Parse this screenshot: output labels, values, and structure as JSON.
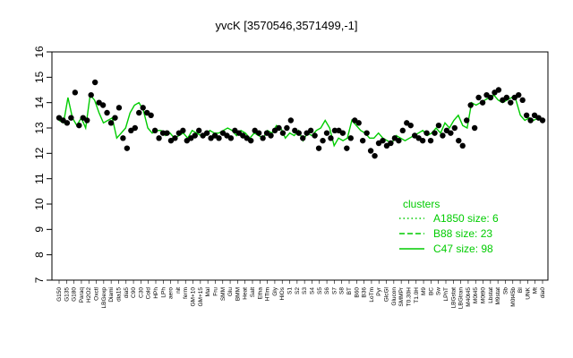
{
  "chart_data": {
    "type": "line",
    "title": "yvcK [3570546,3571499,-1]",
    "xlabel": "",
    "ylabel": "",
    "ylim": [
      7,
      16
    ],
    "yticks": [
      7,
      8,
      9,
      10,
      11,
      12,
      13,
      14,
      15,
      16
    ],
    "grid": false,
    "legend": {
      "title": "clusters",
      "placement": "right",
      "entries": [
        {
          "label": "A1850 size: 6",
          "style": "dotted",
          "color": "#00cc00"
        },
        {
          "label": "B88 size: 23",
          "style": "dashed",
          "color": "#00cc00"
        },
        {
          "label": "C47 size: 98",
          "style": "solid",
          "color": "#00cc00"
        }
      ]
    },
    "x_tick_labels": [
      "G150",
      "G135",
      "G180",
      "Paraq",
      "H2O2",
      "Oxctl",
      "LBGexp",
      "Diami",
      "dia15",
      "dia5",
      "C90",
      "C30",
      "Cold",
      "HPh",
      "LPh",
      "aero",
      "nit",
      "ferm",
      "GM+10",
      "GM+15",
      "Mal",
      "Fru",
      "SMM",
      "Glu",
      "BMM",
      "Heat",
      "Salt",
      "Etha",
      "HTim",
      "Gly",
      "HiOs",
      "S1",
      "S2",
      "S3",
      "S4",
      "S5",
      "S6",
      "S7",
      "S8",
      "BT",
      "B60",
      "B36",
      "LoTm",
      "Pyr",
      "GlcGl",
      "Glucon",
      "SMMPr",
      "T0.30H",
      "T1.0H",
      "M9",
      "BC",
      "Sw",
      "LPhT",
      "LBGstat",
      "LBGtran",
      "M40t45",
      "M0t45",
      "M0t90",
      "Lbstat",
      "M9stat",
      "Sb",
      "M0t45b",
      "BI",
      "UNK",
      "Mt",
      "dia0"
    ],
    "series": [
      {
        "name": "",
        "style": "solid",
        "color": "#00cc00",
        "values": [
          13.3,
          13.2,
          14.2,
          13.4,
          13.1,
          13.4,
          13.0,
          14.3,
          14.1,
          13.6,
          13.2,
          13.3,
          13.4,
          12.6,
          12.8,
          13.0,
          13.6,
          13.9,
          14.0,
          13.7,
          13.0,
          12.8,
          12.9,
          12.9,
          12.7,
          12.8,
          12.6,
          12.7,
          12.8,
          12.6,
          12.9,
          12.8,
          12.7,
          12.7,
          12.9,
          12.8,
          12.8,
          12.9,
          13.0,
          12.9,
          12.7,
          12.9,
          12.8,
          12.6,
          12.8,
          12.7,
          12.6,
          12.9,
          12.8,
          13.1,
          13.0,
          12.6,
          12.8,
          12.7,
          12.9,
          12.5,
          12.8,
          12.7,
          12.9,
          13.0,
          13.3,
          13.0,
          12.3,
          12.6,
          12.5,
          12.6,
          13.3,
          13.1,
          12.9,
          12.8,
          12.6,
          12.6,
          12.8,
          12.6,
          12.5,
          12.4,
          12.7,
          12.6,
          12.5,
          12.6,
          12.7,
          12.8,
          12.9,
          12.7,
          12.8,
          13.0,
          12.8,
          13.2,
          13.0,
          13.3,
          13.5,
          13.1,
          13.0,
          14.0,
          13.9,
          14.0,
          14.1,
          14.2,
          14.3,
          14.1,
          14.0,
          14.1,
          14.2,
          14.1,
          13.5,
          13.3,
          13.4,
          13.3,
          13.4,
          13.3
        ]
      },
      {
        "name": "",
        "style": "points",
        "color": "#000000",
        "values": [
          13.4,
          13.3,
          13.2,
          13.4,
          14.4,
          13.1,
          13.4,
          13.3,
          14.3,
          14.8,
          14.0,
          13.9,
          13.6,
          13.2,
          13.4,
          13.8,
          12.6,
          12.2,
          12.9,
          13.0,
          13.6,
          13.8,
          13.6,
          13.5,
          12.9,
          12.6,
          12.8,
          12.8,
          12.5,
          12.6,
          12.8,
          12.9,
          12.5,
          12.6,
          12.7,
          12.9,
          12.7,
          12.8,
          12.6,
          12.7,
          12.6,
          12.8,
          12.7,
          12.6,
          12.9,
          12.8,
          12.7,
          12.6,
          12.5,
          12.9,
          12.8,
          12.6,
          12.8,
          12.7,
          12.9,
          13.0,
          12.8,
          13.0,
          13.3,
          12.9,
          12.8,
          12.6,
          12.8,
          12.9,
          12.7,
          12.2,
          12.5,
          12.8,
          12.6,
          12.9,
          12.9,
          12.8,
          12.2,
          12.6,
          13.3,
          13.2,
          12.5,
          12.8,
          12.1,
          11.9,
          12.4,
          12.5,
          12.3,
          12.4,
          12.6,
          12.5,
          12.9,
          13.2,
          13.1,
          12.7,
          12.6,
          12.5,
          12.8,
          12.5,
          12.8,
          13.1,
          12.7,
          12.9,
          12.8,
          13.0,
          12.5,
          12.3,
          13.3,
          13.9,
          13.0,
          14.2,
          14.0,
          14.3,
          14.2,
          14.4,
          14.5,
          14.1,
          14.2,
          14.0,
          14.2,
          14.3,
          14.1,
          13.5,
          13.3,
          13.5,
          13.4,
          13.3
        ]
      }
    ]
  }
}
